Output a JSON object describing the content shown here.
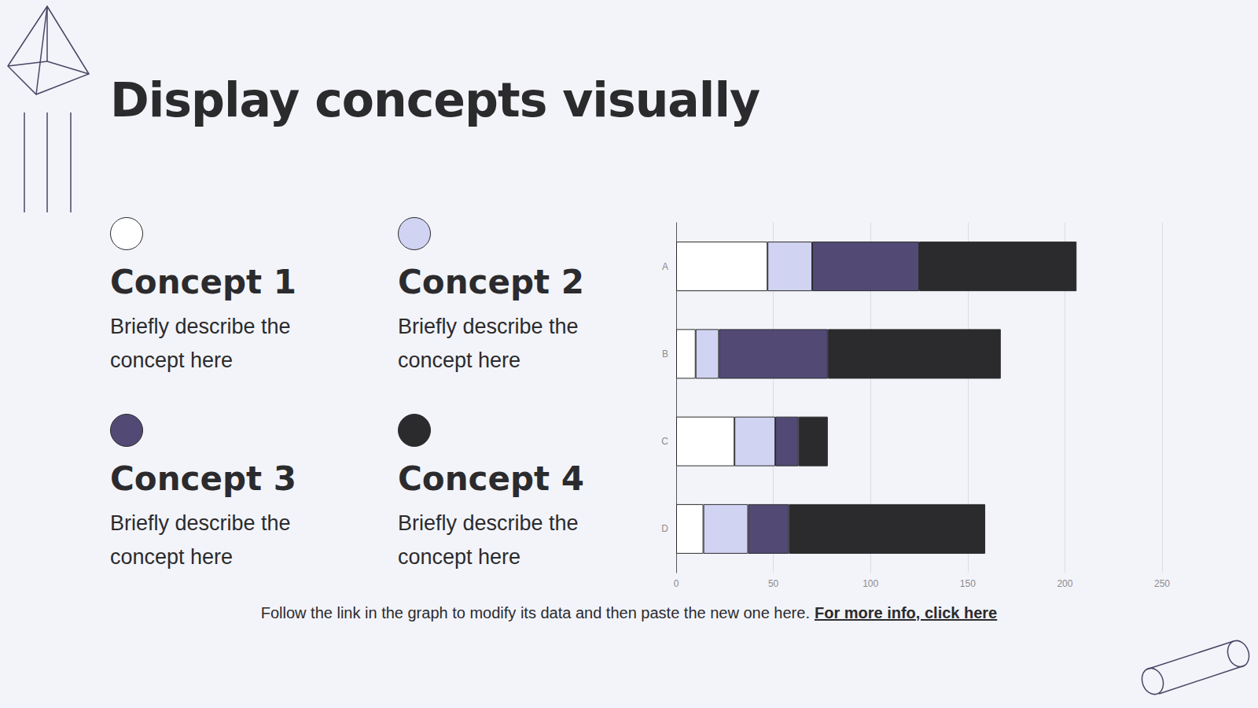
{
  "slide": {
    "title": "Display concepts visually",
    "descriptions": [
      "Briefly describe the concept here",
      "Briefly describe the concept here",
      "Briefly describe the concept here",
      "Briefly describe the concept here"
    ],
    "note": "Follow the link in the graph to modify its data and then paste the new one here.",
    "link": "For more info, click here"
  },
  "chart_data": {
    "type": "bar",
    "orientation": "horizontal",
    "stacked": true,
    "grid": true,
    "categories": [
      "A",
      "B",
      "C",
      "D"
    ],
    "series": [
      {
        "name": "Concept 1",
        "color": "#ffffff",
        "values": [
          47,
          10,
          30,
          14
        ]
      },
      {
        "name": "Concept 2",
        "color": "#d1d3f2",
        "values": [
          23,
          12,
          21,
          23
        ]
      },
      {
        "name": "Concept 3",
        "color": "#524a75",
        "values": [
          55,
          56,
          12,
          21
        ]
      },
      {
        "name": "Concept 4",
        "color": "#2b2b2e",
        "values": [
          81,
          89,
          15,
          101
        ]
      }
    ],
    "xlim": [
      0,
      250
    ],
    "xticks": [
      0,
      50,
      100,
      150,
      200,
      250
    ]
  }
}
